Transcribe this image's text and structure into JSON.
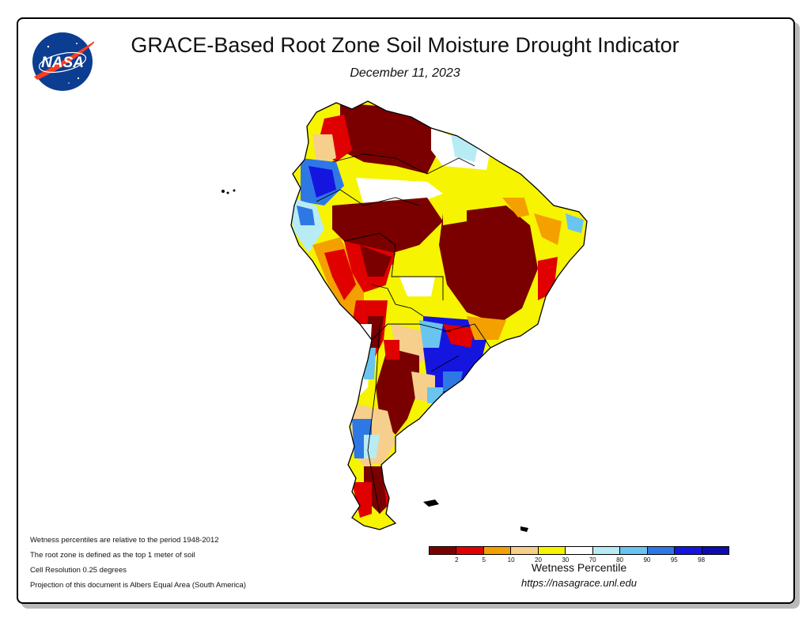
{
  "header": {
    "title": "GRACE-Based Root Zone Soil Moisture Drought Indicator",
    "date": "December 11, 2023"
  },
  "logo": {
    "text": "NASA",
    "icon": "nasa-meatball-logo"
  },
  "notes": [
    "Wetness percentiles are relative to the period 1948-2012",
    "The root zone is defined as the top 1 meter of soil",
    "Cell Resolution 0.25 degrees",
    "Projection of this document is Albers Equal Area (South America)"
  ],
  "legend": {
    "title": "Wetness Percentile",
    "url": "https://nasagrace.unl.edu",
    "colors": [
      "#7a0000",
      "#e00000",
      "#f4a000",
      "#f7cf8c",
      "#f6f400",
      "#ffffff",
      "#b7ecf5",
      "#6ac4f0",
      "#2e78e6",
      "#1515e0",
      "#0c0cb0"
    ],
    "ticks": [
      "2",
      "5",
      "10",
      "20",
      "30",
      "70",
      "80",
      "90",
      "95",
      "98"
    ]
  },
  "map_colors": {
    "extreme_drought": "#7a0000",
    "severe": "#e00000",
    "moderate": "#f4a000",
    "abnormally_dry": "#f7cf8c",
    "dry": "#f6f400",
    "normal": "#ffffff",
    "wet1": "#b7ecf5",
    "wet2": "#6ac4f0",
    "wet3": "#2e78e6",
    "wet4": "#1515e0"
  }
}
